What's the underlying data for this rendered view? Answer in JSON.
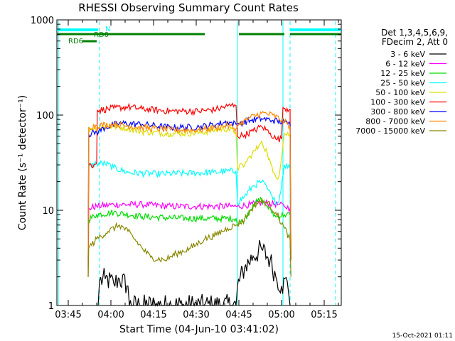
{
  "chart_data": {
    "type": "line",
    "title": "RHESSI Observing Summary Count Rates",
    "xlabel": "Start Time (04-Jun-10 03:41:02)",
    "ylabel": "Count Rate (s⁻¹ detector⁻¹)",
    "x_unit": "minutes after 03:41:02",
    "xlim": [
      0,
      100
    ],
    "ylim": [
      1,
      1000
    ],
    "yscale": "log",
    "x_ticks": [
      {
        "t": 4,
        "label": "03:45"
      },
      {
        "t": 19,
        "label": "04:00"
      },
      {
        "t": 34,
        "label": "04:15"
      },
      {
        "t": 49,
        "label": "04:30"
      },
      {
        "t": 64,
        "label": "04:45"
      },
      {
        "t": 79,
        "label": "05:00"
      },
      {
        "t": 94,
        "label": "05:15"
      }
    ],
    "y_ticks": [
      {
        "v": 1,
        "label": "1"
      },
      {
        "v": 10,
        "label": "10"
      },
      {
        "v": 100,
        "label": "100"
      },
      {
        "v": 1000,
        "label": "1000"
      }
    ],
    "legend_header": [
      "Det 1,3,4,5,6,9,",
      "FDecim 2, Att 0"
    ],
    "legend_position": "right",
    "series": [
      {
        "name": "3 - 6 keV",
        "color": "#000000",
        "points": [
          [
            14.5,
            1
          ],
          [
            15,
            1.8
          ],
          [
            17,
            1.9
          ],
          [
            20,
            1.7
          ],
          [
            22,
            1.9
          ],
          [
            25,
            1.6
          ],
          [
            25.5,
            1
          ],
          [
            63,
            1
          ],
          [
            63.5,
            1.6
          ],
          [
            66,
            2.5
          ],
          [
            69,
            3.3
          ],
          [
            72,
            3.9
          ],
          [
            75,
            3
          ],
          [
            77,
            2
          ],
          [
            79,
            1.6
          ],
          [
            81,
            1.8
          ],
          [
            82,
            1
          ]
        ]
      },
      {
        "name": "6 - 12 keV",
        "color": "#ff00ff",
        "points": [
          [
            11,
            3
          ],
          [
            11.2,
            10.5
          ],
          [
            14,
            11
          ],
          [
            20,
            11.5
          ],
          [
            30,
            11.5
          ],
          [
            40,
            11
          ],
          [
            50,
            11
          ],
          [
            63,
            11
          ],
          [
            63.5,
            11
          ],
          [
            68,
            11.5
          ],
          [
            73,
            12
          ],
          [
            78,
            11.5
          ],
          [
            80,
            11
          ],
          [
            82,
            10.5
          ],
          [
            82.3,
            3
          ]
        ]
      },
      {
        "name": "12 - 25 keV",
        "color": "#00dd00",
        "points": [
          [
            11,
            2.5
          ],
          [
            11.2,
            8
          ],
          [
            14,
            9
          ],
          [
            20,
            9.5
          ],
          [
            30,
            8.6
          ],
          [
            40,
            8.3
          ],
          [
            50,
            8.2
          ],
          [
            63,
            8.2
          ],
          [
            63.5,
            7
          ],
          [
            66,
            8
          ],
          [
            69,
            11.5
          ],
          [
            72,
            13
          ],
          [
            74,
            11
          ],
          [
            77,
            8.5
          ],
          [
            80,
            9
          ],
          [
            82,
            9
          ],
          [
            82.3,
            3
          ]
        ]
      },
      {
        "name": "25 - 50 keV",
        "color": "#00ffff",
        "points": [
          [
            11,
            3
          ],
          [
            11.2,
            29
          ],
          [
            14,
            31
          ],
          [
            17,
            31
          ],
          [
            20,
            28
          ],
          [
            25,
            25
          ],
          [
            35,
            24
          ],
          [
            45,
            24.5
          ],
          [
            55,
            25
          ],
          [
            63,
            26
          ],
          [
            63.5,
            12
          ],
          [
            66,
            14
          ],
          [
            69,
            18
          ],
          [
            72,
            20
          ],
          [
            74,
            17
          ],
          [
            76,
            13
          ],
          [
            78,
            12
          ],
          [
            80,
            30
          ],
          [
            82,
            28
          ],
          [
            82.3,
            3
          ]
        ]
      },
      {
        "name": "50 - 100 keV",
        "color": "#dddd00",
        "points": [
          [
            11,
            3
          ],
          [
            11.2,
            72
          ],
          [
            15,
            74
          ],
          [
            20,
            76
          ],
          [
            25,
            73
          ],
          [
            30,
            67
          ],
          [
            40,
            64
          ],
          [
            50,
            65
          ],
          [
            56,
            70
          ],
          [
            60,
            72
          ],
          [
            63,
            66
          ],
          [
            63.5,
            28
          ],
          [
            66,
            30
          ],
          [
            68,
            37
          ],
          [
            71,
            47
          ],
          [
            72,
            53
          ],
          [
            74,
            40
          ],
          [
            76,
            25
          ],
          [
            78,
            22
          ],
          [
            80,
            64
          ],
          [
            82,
            62
          ],
          [
            82.3,
            3
          ]
        ]
      },
      {
        "name": "100 - 300 keV",
        "color": "#ff0000",
        "points": [
          [
            11,
            2
          ],
          [
            11.2,
            30
          ],
          [
            13,
            30
          ],
          [
            14,
            31
          ],
          [
            14.2,
            112
          ],
          [
            20,
            118
          ],
          [
            25,
            122
          ],
          [
            30,
            116
          ],
          [
            40,
            110
          ],
          [
            50,
            110
          ],
          [
            56,
            115
          ],
          [
            60,
            124
          ],
          [
            62.5,
            128
          ],
          [
            63,
            126
          ],
          [
            63.5,
            60
          ],
          [
            66,
            62
          ],
          [
            69,
            68
          ],
          [
            72,
            76
          ],
          [
            75,
            65
          ],
          [
            77,
            56
          ],
          [
            79,
            56
          ],
          [
            79.5,
            120
          ],
          [
            82,
            115
          ],
          [
            82.3,
            3
          ]
        ]
      },
      {
        "name": "300 - 800 keV",
        "color": "#0000ff",
        "points": [
          [
            11,
            3
          ],
          [
            11.2,
            63
          ],
          [
            14,
            66
          ],
          [
            17,
            74
          ],
          [
            22,
            82
          ],
          [
            30,
            80
          ],
          [
            40,
            74
          ],
          [
            50,
            75
          ],
          [
            56,
            80
          ],
          [
            60,
            85
          ],
          [
            63,
            80
          ],
          [
            64,
            82
          ],
          [
            68,
            88
          ],
          [
            72,
            92
          ],
          [
            76,
            88
          ],
          [
            80,
            84
          ],
          [
            82,
            80
          ],
          [
            82.3,
            3
          ]
        ]
      },
      {
        "name": "800 - 7000 keV",
        "color": "#ff8800",
        "points": [
          [
            11,
            3
          ],
          [
            11.2,
            75
          ],
          [
            14,
            78
          ],
          [
            20,
            80
          ],
          [
            30,
            74
          ],
          [
            40,
            70
          ],
          [
            50,
            70
          ],
          [
            56,
            74
          ],
          [
            60,
            78
          ],
          [
            63,
            72
          ],
          [
            64,
            80
          ],
          [
            68,
            94
          ],
          [
            72,
            105
          ],
          [
            76,
            100
          ],
          [
            80,
            85
          ],
          [
            82,
            76
          ],
          [
            82.3,
            3
          ]
        ]
      },
      {
        "name": "7000 - 15000 keV",
        "color": "#888800",
        "points": [
          [
            11,
            2
          ],
          [
            11.2,
            4
          ],
          [
            14,
            5
          ],
          [
            18,
            6
          ],
          [
            22,
            7
          ],
          [
            25,
            6
          ],
          [
            30,
            4
          ],
          [
            33,
            3.2
          ],
          [
            38,
            3
          ],
          [
            42,
            3.5
          ],
          [
            47,
            4
          ],
          [
            52,
            5
          ],
          [
            56,
            5.5
          ],
          [
            60,
            6.5
          ],
          [
            63,
            7
          ],
          [
            66,
            8
          ],
          [
            68,
            10
          ],
          [
            71,
            12.5
          ],
          [
            74,
            12
          ],
          [
            77,
            9.5
          ],
          [
            80,
            6.5
          ],
          [
            82,
            5
          ],
          [
            82.3,
            2
          ]
        ]
      }
    ],
    "segments": {
      "N": {
        "label": "N",
        "color": "#00ffff",
        "ranges": [
          [
            0,
            14.5
          ],
          [
            82,
            100
          ]
        ]
      },
      "RD": {
        "color": "#008000",
        "ranges": [
          [
            0,
            52
          ],
          [
            64,
            80
          ],
          [
            82,
            100
          ]
        ]
      },
      "RD6": {
        "label": "RD6",
        "color": "#008000",
        "ranges": [
          [
            9,
            14
          ]
        ]
      },
      "RD0": {
        "label": "RD0",
        "color": "#008000",
        "ranges": [
          [
            8,
            12
          ]
        ]
      }
    },
    "vlines_solid": [
      0.5,
      63.5,
      79.5
    ],
    "vlines_dashed": [
      15,
      82,
      98
    ],
    "vline_color": "#00ffff"
  },
  "footer_date": "15-Oct-2021 01:11"
}
